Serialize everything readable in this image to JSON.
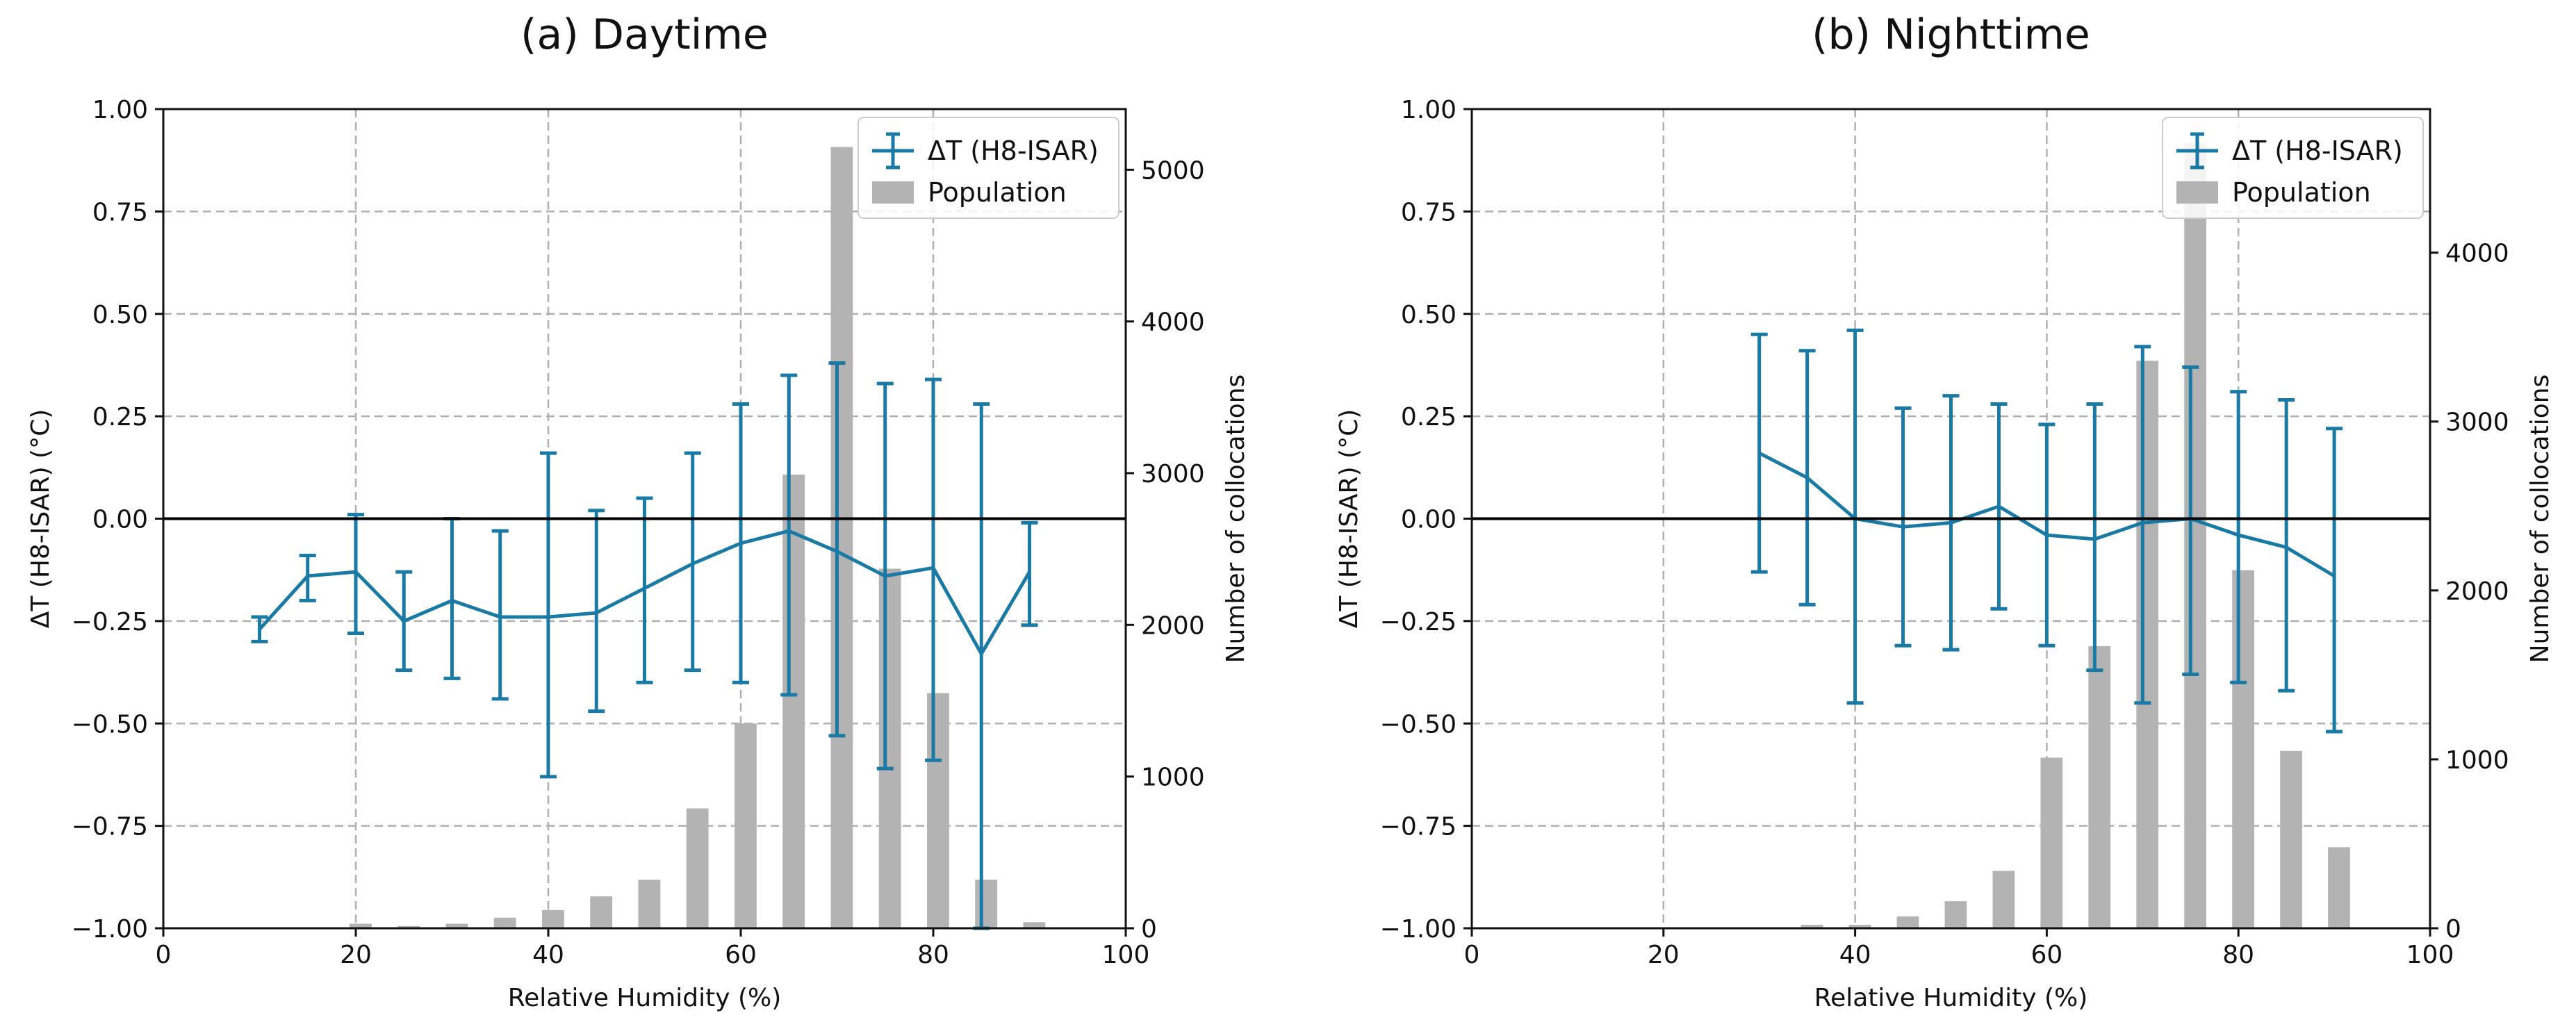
{
  "chart_data": [
    {
      "type": "line",
      "title": "(a) Daytime",
      "xlabel": "Relative Humidity (%)",
      "ylabel": "ΔT (H8-ISAR) (°C)",
      "ylabel2": "Number of collocations",
      "xlim": [
        0,
        100
      ],
      "ylim": [
        -1.0,
        1.0
      ],
      "y2lim": [
        0,
        5400
      ],
      "grid": true,
      "legend_placement": "top-right",
      "x_ticks": [
        "0",
        "20",
        "40",
        "60",
        "80",
        "100"
      ],
      "y_ticks": [
        "−1.00",
        "−0.75",
        "−0.50",
        "−0.25",
        "0.00",
        "0.25",
        "0.50",
        "0.75",
        "1.00"
      ],
      "y2_ticks": [
        "0",
        "1000",
        "2000",
        "3000",
        "4000",
        "5000"
      ],
      "legend": [
        "ΔT (H8-ISAR)",
        "Population"
      ],
      "series": [
        {
          "name": "ΔT (H8-ISAR)",
          "x": [
            10,
            15,
            20,
            25,
            30,
            35,
            40,
            45,
            50,
            55,
            60,
            65,
            70,
            75,
            80,
            85,
            90
          ],
          "y": [
            -0.27,
            -0.14,
            -0.13,
            -0.25,
            -0.2,
            -0.24,
            -0.24,
            -0.23,
            -0.17,
            -0.11,
            -0.06,
            -0.03,
            -0.08,
            -0.14,
            -0.12,
            -0.33,
            -0.13
          ],
          "yerr_low": [
            -0.3,
            -0.2,
            -0.28,
            -0.37,
            -0.39,
            -0.44,
            -0.63,
            -0.47,
            -0.4,
            -0.37,
            -0.4,
            -0.43,
            -0.53,
            -0.61,
            -0.59,
            -1.0,
            -0.26
          ],
          "yerr_high": [
            -0.24,
            -0.09,
            0.01,
            -0.13,
            0.0,
            -0.03,
            0.16,
            0.02,
            0.05,
            0.16,
            0.28,
            0.35,
            0.38,
            0.33,
            0.34,
            0.28,
            -0.01
          ]
        },
        {
          "name": "Population",
          "type": "bar",
          "x": [
            20.5,
            25.5,
            30.5,
            35.5,
            40.5,
            45.5,
            50.5,
            55.5,
            60.5,
            65.5,
            70.5,
            75.5,
            80.5,
            85.5,
            90.5
          ],
          "values": [
            30,
            15,
            30,
            70,
            120,
            210,
            320,
            790,
            1350,
            2990,
            5150,
            2370,
            1550,
            320,
            40
          ]
        }
      ]
    },
    {
      "type": "line",
      "title": "(b) Nighttime",
      "xlabel": "Relative Humidity (%)",
      "ylabel": "ΔT (H8-ISAR) (°C)",
      "ylabel2": "Number of collocations",
      "xlim": [
        0,
        100
      ],
      "ylim": [
        -1.0,
        1.0
      ],
      "y2lim": [
        0,
        4850
      ],
      "grid": true,
      "legend_placement": "top-right",
      "x_ticks": [
        "0",
        "20",
        "40",
        "60",
        "80",
        "100"
      ],
      "y_ticks": [
        "−1.00",
        "−0.75",
        "−0.50",
        "−0.25",
        "0.00",
        "0.25",
        "0.50",
        "0.75",
        "1.00"
      ],
      "y2_ticks": [
        "0",
        "1000",
        "2000",
        "3000",
        "4000"
      ],
      "legend": [
        "ΔT (H8-ISAR)",
        "Population"
      ],
      "series": [
        {
          "name": "ΔT (H8-ISAR)",
          "x": [
            30,
            35,
            40,
            45,
            50,
            55,
            60,
            65,
            70,
            75,
            80,
            85,
            90
          ],
          "y": [
            0.16,
            0.1,
            0.0,
            -0.02,
            -0.01,
            0.03,
            -0.04,
            -0.05,
            -0.01,
            0.0,
            -0.04,
            -0.07,
            -0.14
          ],
          "yerr_low": [
            -0.13,
            -0.21,
            -0.45,
            -0.31,
            -0.32,
            -0.22,
            -0.31,
            -0.37,
            -0.45,
            -0.38,
            -0.4,
            -0.42,
            -0.52
          ],
          "yerr_high": [
            0.45,
            0.41,
            0.46,
            0.27,
            0.3,
            0.28,
            0.23,
            0.28,
            0.42,
            0.37,
            0.31,
            0.29,
            0.22
          ]
        },
        {
          "name": "Population",
          "type": "bar",
          "x": [
            35.5,
            40.5,
            45.5,
            50.5,
            55.5,
            60.5,
            65.5,
            70.5,
            75.5,
            80.5,
            85.5,
            90.5
          ],
          "values": [
            20,
            20,
            70,
            160,
            340,
            1010,
            1670,
            3360,
            4650,
            2120,
            1050,
            480
          ]
        }
      ]
    }
  ]
}
